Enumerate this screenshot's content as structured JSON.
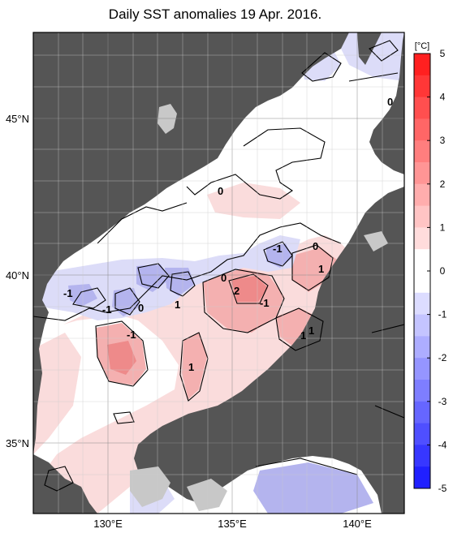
{
  "title": "Daily SST anomalies 19 Apr. 2016.",
  "map": {
    "lon_ticks": [
      "130°E",
      "135°E",
      "140°E"
    ],
    "lat_ticks": [
      "45°N",
      "40°N",
      "35°N"
    ],
    "contour_labels": [
      "0",
      "0",
      "-1",
      "0",
      "1",
      "-1",
      "0",
      "2",
      "1",
      "-1",
      "-1",
      "0",
      "-1",
      "1",
      "1",
      "1"
    ]
  },
  "colorbar": {
    "unit": "[°C]",
    "ticks": [
      "5",
      "4",
      "3",
      "2",
      "1",
      "0",
      "-1",
      "-2",
      "-3",
      "-4",
      "-5"
    ]
  },
  "colors": {
    "land": "#555555",
    "land_cold": "#c8c8c8",
    "warm_1": "#fadcdc",
    "warm_2": "#f4b0b0",
    "warm_3": "#ee8a8a",
    "cold_1": "#dcdcf8",
    "cold_2": "#b4b4ee",
    "cold_3": "#7070e0",
    "cold_4": "#3a3ae0"
  }
}
